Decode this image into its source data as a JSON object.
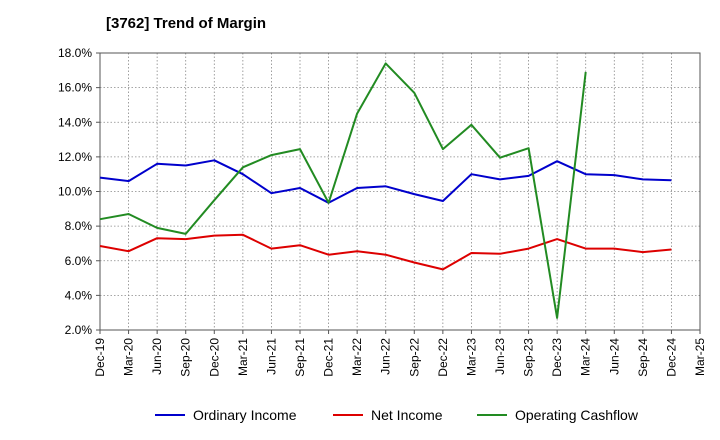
{
  "title": "[3762]  Trend of Margin",
  "chart_data": {
    "type": "line",
    "title": "[3762]  Trend of Margin",
    "xlabel": "",
    "ylabel": "",
    "ylim": [
      2.0,
      18.0
    ],
    "y_ticks": [
      "2.0%",
      "4.0%",
      "6.0%",
      "8.0%",
      "10.0%",
      "12.0%",
      "14.0%",
      "16.0%",
      "18.0%"
    ],
    "x_ticks": [
      "Dec-19",
      "Mar-20",
      "Jun-20",
      "Sep-20",
      "Dec-20",
      "Mar-21",
      "Jun-21",
      "Sep-21",
      "Dec-21",
      "Mar-22",
      "Jun-22",
      "Sep-22",
      "Dec-22",
      "Mar-23",
      "Jun-23",
      "Sep-23",
      "Dec-23",
      "Mar-24",
      "Jun-24",
      "Sep-24",
      "Dec-24",
      "Mar-25"
    ],
    "grid": true,
    "legend_position": "bottom",
    "series": [
      {
        "name": "Ordinary Income",
        "color": "#0000cc",
        "values": [
          10.8,
          10.6,
          11.6,
          11.5,
          11.8,
          11.0,
          9.9,
          10.2,
          9.35,
          10.2,
          10.3,
          9.85,
          9.45,
          11.0,
          10.7,
          10.9,
          11.75,
          11.0,
          10.95,
          10.7,
          10.65,
          null
        ]
      },
      {
        "name": "Net Income",
        "color": "#dd0000",
        "values": [
          6.85,
          6.55,
          7.3,
          7.25,
          7.45,
          7.5,
          6.7,
          6.9,
          6.35,
          6.55,
          6.35,
          5.9,
          5.5,
          6.45,
          6.4,
          6.7,
          7.25,
          6.7,
          6.7,
          6.5,
          6.65,
          null
        ]
      },
      {
        "name": "Operating Cashflow",
        "color": "#228b22",
        "values": [
          8.4,
          8.7,
          7.9,
          7.55,
          9.5,
          11.4,
          12.1,
          12.45,
          9.35,
          14.5,
          17.4,
          15.7,
          12.45,
          13.85,
          11.95,
          12.5,
          2.7,
          16.9,
          null,
          null,
          null,
          null
        ]
      }
    ]
  }
}
